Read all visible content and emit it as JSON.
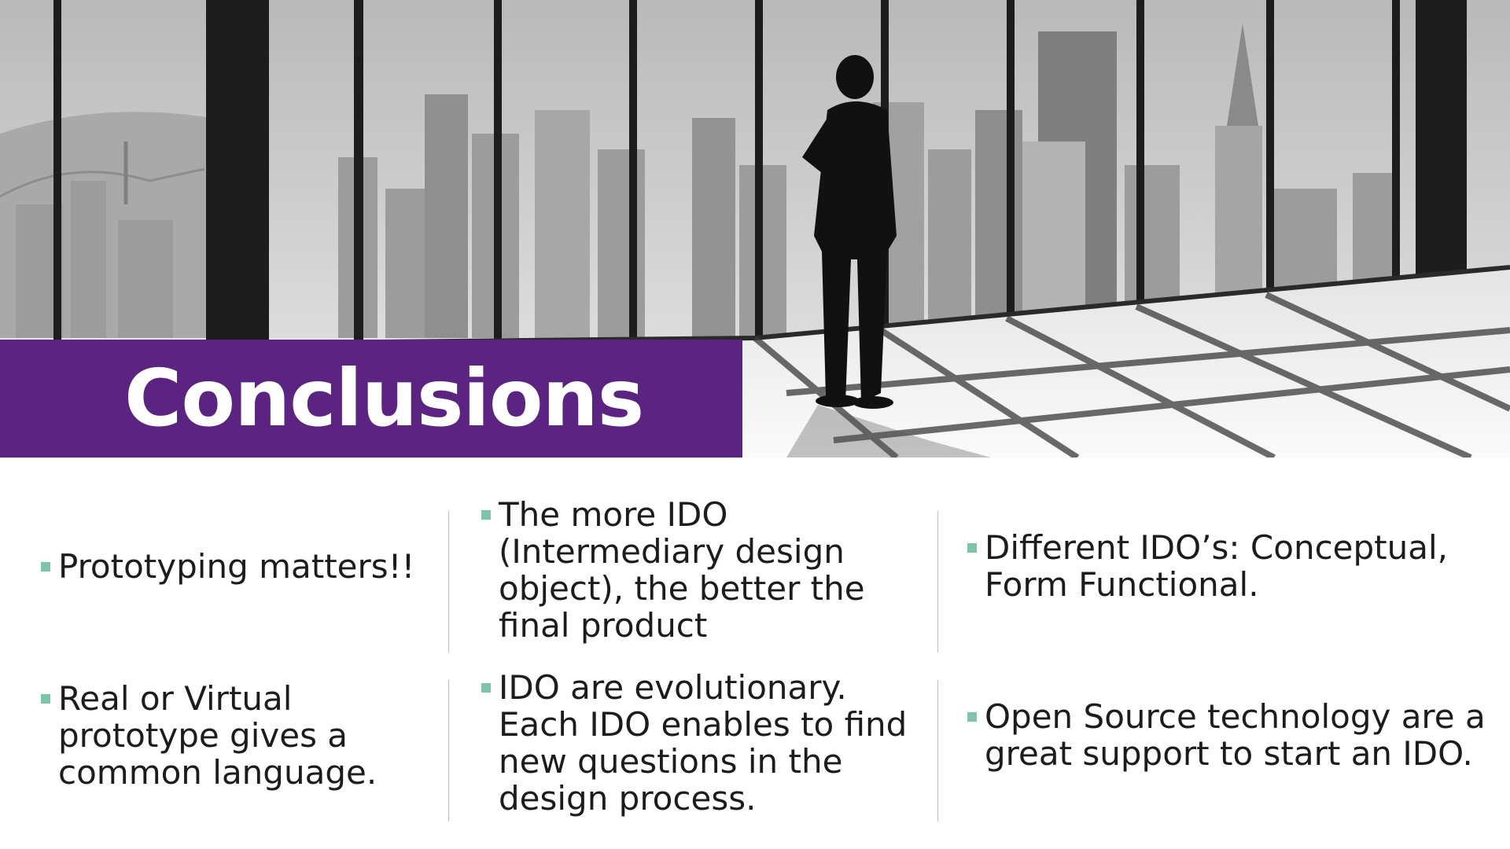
{
  "slide": {
    "title": "Conclusions",
    "accent_color": "#5b2480",
    "bullet_color": "#7cc3a8"
  },
  "hero_image": {
    "icon": "city-office-photo"
  },
  "bullets": {
    "row1": [
      {
        "text": "Prototyping matters!!"
      },
      {
        "text": "The more IDO (Intermediary design object), the better the final product"
      },
      {
        "text": "Different IDO’s: Conceptual, Form Functional."
      }
    ],
    "row2": [
      {
        "text": "Real or Virtual prototype gives a common language."
      },
      {
        "text": "IDO are evolutionary. Each IDO enables to find new questions in the design process."
      },
      {
        "text": "Open Source technology are a great support to start an IDO."
      }
    ]
  }
}
